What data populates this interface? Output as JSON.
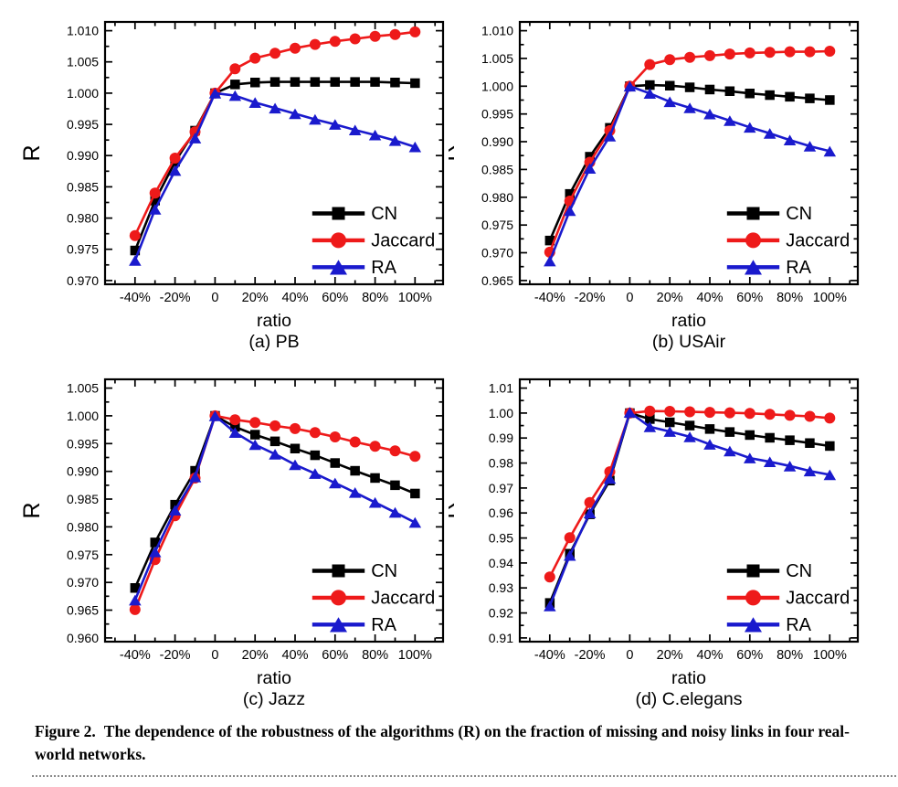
{
  "page": {
    "background": "#ffffff"
  },
  "figure_caption": {
    "label": "Figure 2.",
    "text": "The dependence of the robustness of the algorithms (R) on the fraction of missing and noisy links in four real-world networks."
  },
  "colors": {
    "cn": "#000000",
    "jaccard": "#ee1a1a",
    "ra": "#1a1acd"
  },
  "chart_data": [
    {
      "type": "line",
      "title": "(a) PB",
      "xlabel": "ratio",
      "ylabel": "R",
      "xlim": [
        -55,
        114
      ],
      "ylim": [
        0.97,
        1.01
      ],
      "ytick_step": 0.005,
      "ytick_decimals": 3,
      "xticks": [
        -40,
        -20,
        0,
        20,
        40,
        60,
        80,
        100
      ],
      "xtick_labels": [
        "-40%",
        "-20%",
        "0",
        "20%",
        "40%",
        "60%",
        "80%",
        "100%"
      ],
      "grid": false,
      "legend_position": "lower-right",
      "x": [
        -40,
        -30,
        -20,
        -10,
        0,
        10,
        20,
        30,
        40,
        50,
        60,
        70,
        80,
        90,
        100
      ],
      "series": [
        {
          "name": "CN",
          "color": "#000000",
          "marker": "square",
          "values": [
            0.9748,
            0.9828,
            0.989,
            0.994,
            1.0,
            1.0014,
            1.0017,
            1.0018,
            1.0018,
            1.0018,
            1.0018,
            1.0018,
            1.0018,
            1.0017,
            1.0016
          ]
        },
        {
          "name": "Jaccard",
          "color": "#ee1a1a",
          "marker": "circle",
          "values": [
            0.9772,
            0.984,
            0.9896,
            0.9938,
            1.0,
            1.0039,
            1.0056,
            1.0064,
            1.0072,
            1.0078,
            1.0083,
            1.0087,
            1.0091,
            1.0094,
            1.0098
          ]
        },
        {
          "name": "RA",
          "color": "#1a1acd",
          "marker": "triangle",
          "values": [
            0.9732,
            0.9814,
            0.9876,
            0.9928,
            1.0,
            0.9996,
            0.9985,
            0.9976,
            0.9967,
            0.9958,
            0.995,
            0.9941,
            0.9933,
            0.9924,
            0.9914
          ]
        }
      ]
    },
    {
      "type": "line",
      "title": "(b) USAir",
      "xlabel": "ratio",
      "ylabel": "R",
      "xlim": [
        -55,
        114
      ],
      "ylim": [
        0.965,
        1.01
      ],
      "ytick_step": 0.005,
      "ytick_decimals": 3,
      "xticks": [
        -40,
        -20,
        0,
        20,
        40,
        60,
        80,
        100
      ],
      "xtick_labels": [
        "-40%",
        "-20%",
        "0",
        "20%",
        "40%",
        "60%",
        "80%",
        "100%"
      ],
      "grid": false,
      "legend_position": "lower-right",
      "x": [
        -40,
        -30,
        -20,
        -10,
        0,
        10,
        20,
        30,
        40,
        50,
        60,
        70,
        80,
        90,
        100
      ],
      "series": [
        {
          "name": "CN",
          "color": "#000000",
          "marker": "square",
          "values": [
            0.9722,
            0.9806,
            0.9873,
            0.9925,
            1.0,
            1.0002,
            1.0001,
            0.9998,
            0.9994,
            0.9991,
            0.9987,
            0.9984,
            0.9981,
            0.9978,
            0.9975
          ]
        },
        {
          "name": "Jaccard",
          "color": "#ee1a1a",
          "marker": "circle",
          "values": [
            0.9701,
            0.9793,
            0.9863,
            0.992,
            1.0,
            1.0039,
            1.0048,
            1.0052,
            1.0055,
            1.0058,
            1.006,
            1.0061,
            1.0062,
            1.0062,
            1.0063
          ]
        },
        {
          "name": "RA",
          "color": "#1a1acd",
          "marker": "triangle",
          "values": [
            0.9685,
            0.9776,
            0.9852,
            0.991,
            1.0,
            0.9987,
            0.9972,
            0.9961,
            0.995,
            0.9938,
            0.9926,
            0.9915,
            0.9903,
            0.9892,
            0.9883
          ]
        }
      ]
    },
    {
      "type": "line",
      "title": "(c) Jazz",
      "xlabel": "ratio",
      "ylabel": "R",
      "xlim": [
        -55,
        114
      ],
      "ylim": [
        0.96,
        1.005
      ],
      "ytick_step": 0.005,
      "ytick_decimals": 3,
      "xticks": [
        -40,
        -20,
        0,
        20,
        40,
        60,
        80,
        100
      ],
      "xtick_labels": [
        "-40%",
        "-20%",
        "0",
        "20%",
        "40%",
        "60%",
        "80%",
        "100%"
      ],
      "grid": false,
      "legend_position": "lower-right",
      "x": [
        -40,
        -30,
        -20,
        -10,
        0,
        10,
        20,
        30,
        40,
        50,
        60,
        70,
        80,
        90,
        100
      ],
      "series": [
        {
          "name": "CN",
          "color": "#000000",
          "marker": "square",
          "values": [
            0.969,
            0.9772,
            0.984,
            0.9901,
            1.0,
            0.998,
            0.9966,
            0.9954,
            0.9941,
            0.9929,
            0.9915,
            0.9901,
            0.9888,
            0.9875,
            0.986
          ]
        },
        {
          "name": "Jaccard",
          "color": "#ee1a1a",
          "marker": "circle",
          "values": [
            0.9651,
            0.9741,
            0.982,
            0.9888,
            1.0,
            0.9993,
            0.9988,
            0.9982,
            0.9977,
            0.997,
            0.9962,
            0.9953,
            0.9945,
            0.9937,
            0.9927
          ]
        },
        {
          "name": "RA",
          "color": "#1a1acd",
          "marker": "triangle",
          "values": [
            0.9668,
            0.9755,
            0.983,
            0.989,
            1.0,
            0.997,
            0.9948,
            0.9931,
            0.9912,
            0.9896,
            0.9879,
            0.9862,
            0.9844,
            0.9826,
            0.9808
          ]
        }
      ]
    },
    {
      "type": "line",
      "title": "(d) C.elegans",
      "xlabel": "ratio",
      "ylabel": "R",
      "xlim": [
        -55,
        114
      ],
      "ylim": [
        0.91,
        1.01
      ],
      "ytick_step": 0.01,
      "ytick_decimals": 2,
      "xticks": [
        -40,
        -20,
        0,
        20,
        40,
        60,
        80,
        100
      ],
      "xtick_labels": [
        "-40%",
        "-20%",
        "0",
        "20%",
        "40%",
        "60%",
        "80%",
        "100%"
      ],
      "grid": false,
      "legend_position": "lower-right",
      "x": [
        -40,
        -30,
        -20,
        -10,
        0,
        10,
        20,
        30,
        40,
        50,
        60,
        70,
        80,
        90,
        100
      ],
      "series": [
        {
          "name": "CN",
          "color": "#000000",
          "marker": "square",
          "values": [
            0.924,
            0.9437,
            0.9595,
            0.973,
            1.0,
            0.9976,
            0.9963,
            0.995,
            0.9936,
            0.9924,
            0.9912,
            0.9901,
            0.9891,
            0.988,
            0.9868
          ]
        },
        {
          "name": "Jaccard",
          "color": "#ee1a1a",
          "marker": "circle",
          "values": [
            0.9344,
            0.9501,
            0.9642,
            0.9765,
            1.0,
            1.0008,
            1.0007,
            1.0005,
            1.0003,
            1.0001,
            0.9999,
            0.9995,
            0.9991,
            0.9987,
            0.998
          ]
        },
        {
          "name": "RA",
          "color": "#1a1acd",
          "marker": "triangle",
          "values": [
            0.9228,
            0.943,
            0.96,
            0.9738,
            1.0003,
            0.9945,
            0.9926,
            0.9905,
            0.9875,
            0.9848,
            0.982,
            0.9805,
            0.9788,
            0.9768,
            0.9753
          ]
        }
      ]
    }
  ]
}
